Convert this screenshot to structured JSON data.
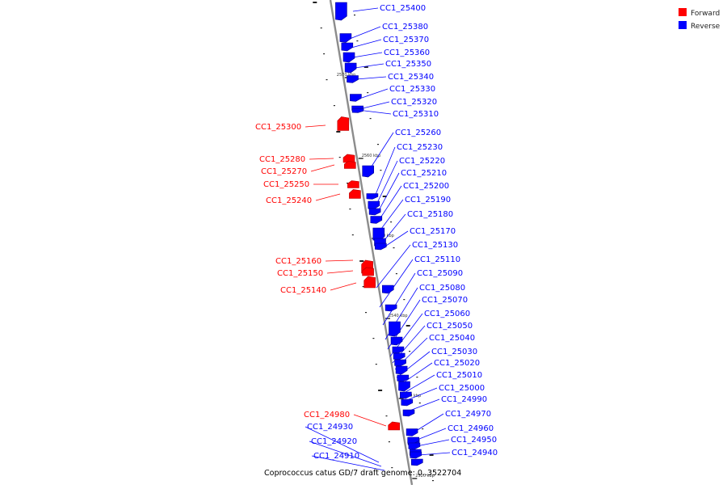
{
  "colors": {
    "forward": "#ff0000",
    "reverse": "#0000ff",
    "axis": "#8c8c8c",
    "tick": "#222222"
  },
  "legend": {
    "forward": "Forward",
    "reverse": "Reverse"
  },
  "caption": "Coprococcus catus GD/7 draft genome: 0..3522704",
  "scale_marks": [
    "2570 kbp",
    "2560 kbp",
    "2550 kbp",
    "2540 kbp",
    "2530 kbp",
    "2520 kbp"
  ],
  "genes": [
    {
      "id": "CC1_25400",
      "strand": "reverse"
    },
    {
      "id": "CC1_25380",
      "strand": "reverse"
    },
    {
      "id": "CC1_25370",
      "strand": "reverse"
    },
    {
      "id": "CC1_25360",
      "strand": "reverse"
    },
    {
      "id": "CC1_25350",
      "strand": "reverse"
    },
    {
      "id": "CC1_25340",
      "strand": "reverse"
    },
    {
      "id": "CC1_25330",
      "strand": "reverse"
    },
    {
      "id": "CC1_25320",
      "strand": "reverse"
    },
    {
      "id": "CC1_25310",
      "strand": "reverse"
    },
    {
      "id": "CC1_25300",
      "strand": "forward"
    },
    {
      "id": "CC1_25260",
      "strand": "reverse"
    },
    {
      "id": "CC1_25230",
      "strand": "reverse"
    },
    {
      "id": "CC1_25280",
      "strand": "forward"
    },
    {
      "id": "CC1_25220",
      "strand": "reverse"
    },
    {
      "id": "CC1_25270",
      "strand": "forward"
    },
    {
      "id": "CC1_25210",
      "strand": "reverse"
    },
    {
      "id": "CC1_25250",
      "strand": "forward"
    },
    {
      "id": "CC1_25200",
      "strand": "reverse"
    },
    {
      "id": "CC1_25190",
      "strand": "reverse"
    },
    {
      "id": "CC1_25240",
      "strand": "forward"
    },
    {
      "id": "CC1_25180",
      "strand": "reverse"
    },
    {
      "id": "CC1_25170",
      "strand": "reverse"
    },
    {
      "id": "CC1_25130",
      "strand": "reverse"
    },
    {
      "id": "CC1_25110",
      "strand": "reverse"
    },
    {
      "id": "CC1_25160",
      "strand": "forward"
    },
    {
      "id": "CC1_25150",
      "strand": "forward"
    },
    {
      "id": "CC1_25090",
      "strand": "reverse"
    },
    {
      "id": "CC1_25080",
      "strand": "reverse"
    },
    {
      "id": "CC1_25140",
      "strand": "forward"
    },
    {
      "id": "CC1_25070",
      "strand": "reverse"
    },
    {
      "id": "CC1_25060",
      "strand": "reverse"
    },
    {
      "id": "CC1_25050",
      "strand": "reverse"
    },
    {
      "id": "CC1_25040",
      "strand": "reverse"
    },
    {
      "id": "CC1_25030",
      "strand": "reverse"
    },
    {
      "id": "CC1_25020",
      "strand": "reverse"
    },
    {
      "id": "CC1_25010",
      "strand": "reverse"
    },
    {
      "id": "CC1_25000",
      "strand": "reverse"
    },
    {
      "id": "CC1_24990",
      "strand": "reverse"
    },
    {
      "id": "CC1_24980",
      "strand": "forward"
    },
    {
      "id": "CC1_24970",
      "strand": "reverse"
    },
    {
      "id": "CC1_24930",
      "strand": "reverse"
    },
    {
      "id": "CC1_24960",
      "strand": "reverse"
    },
    {
      "id": "CC1_24950",
      "strand": "reverse"
    },
    {
      "id": "CC1_24920",
      "strand": "reverse"
    },
    {
      "id": "CC1_24940",
      "strand": "reverse"
    },
    {
      "id": "CC1_24910",
      "strand": "reverse"
    }
  ]
}
